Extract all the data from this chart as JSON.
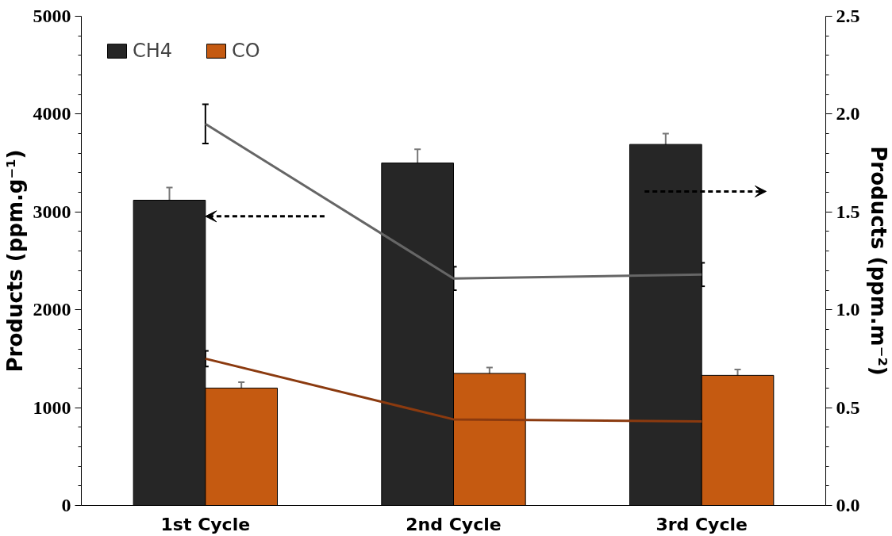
{
  "chart_data": {
    "type": "bar",
    "categories": [
      "1st Cycle",
      "2nd Cycle",
      "3rd Cycle"
    ],
    "ylabel": "Products (ppm.g⁻¹)",
    "y2label": "Products (ppm.m⁻²)",
    "ylim": [
      0,
      5000
    ],
    "yticks": [
      0,
      1000,
      2000,
      3000,
      4000,
      5000
    ],
    "y2lim": [
      0,
      2.5
    ],
    "y2ticks": [
      {
        "value": 0,
        "label": "0.0"
      },
      0.5,
      {
        "value": 1,
        "label": "1.0"
      },
      1.5,
      {
        "value": 2,
        "label": "2.0"
      },
      2.5
    ],
    "legend": "top left",
    "series": [
      {
        "name": "CH4",
        "color": "#262626",
        "values": [
          3120,
          3500,
          3690
        ],
        "errors": [
          130,
          140,
          110
        ]
      },
      {
        "name": "CO",
        "color": "#c55a11",
        "values": [
          1200,
          1350,
          1330
        ],
        "errors": [
          60,
          60,
          60
        ]
      },
      {
        "type": "line",
        "axis": "y2",
        "color": "#666666",
        "values": [
          1.95,
          1.16,
          1.18
        ],
        "errors": [
          0.1,
          0.06,
          0.06
        ]
      },
      {
        "type": "line",
        "axis": "y2",
        "color": "#8b3a0f",
        "values": [
          0.75,
          0.44,
          0.43
        ],
        "errors": [
          0.04,
          0.03,
          0.03
        ]
      }
    ]
  }
}
